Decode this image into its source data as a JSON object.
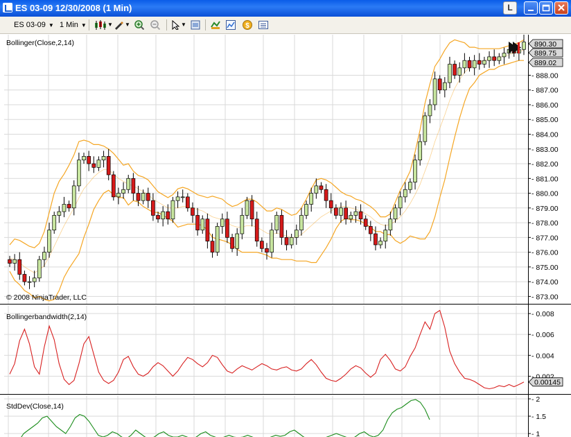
{
  "window": {
    "title": "ES 03-09  12/30/2008 (1 Min)",
    "link_button": "L"
  },
  "toolbar": {
    "instrument": "ES 03-09",
    "interval": "1 Min"
  },
  "colors": {
    "up_candle": "#c8e6a0",
    "down_candle": "#d51a1a",
    "band": "#f5a623",
    "bandwidth_line": "#d82020",
    "stddev_line": "#1a8c1a",
    "grid": "#d9d9d9",
    "price_marker": "#d9d9d9"
  },
  "icons": [
    "candlestick-icon",
    "pencil-icon",
    "zoom-in-icon",
    "zoom-out-icon",
    "cursor-icon",
    "properties-icon",
    "strategy-icon",
    "chart-trader-icon",
    "money-icon",
    "data-box-icon"
  ],
  "chart_data": [
    {
      "type": "candlestick",
      "title": "Bollinger(Close,2,14)",
      "copyright": "© 2008 NinjaTrader, LLC",
      "ylim": [
        872.5,
        890.75
      ],
      "yticks": [
        "873.00",
        "874.00",
        "875.00",
        "876.00",
        "877.00",
        "878.00",
        "879.00",
        "880.00",
        "881.00",
        "882.00",
        "883.00",
        "884.00",
        "885.00",
        "886.00",
        "887.00",
        "888.00"
      ],
      "price_markers": [
        "890.30",
        "889.75",
        "889.02"
      ],
      "series": [
        {
          "name": "Close",
          "values": [
            875.25,
            875.5,
            874.5,
            874.0,
            874.0,
            874.25,
            875.5,
            876.0,
            877.5,
            878.5,
            878.75,
            879.25,
            879.0,
            880.5,
            882.25,
            882.5,
            882.0,
            881.75,
            882.25,
            882.5,
            881.25,
            879.75,
            880.0,
            880.25,
            881.0,
            880.0,
            879.5,
            880.0,
            879.5,
            878.5,
            878.25,
            878.75,
            878.25,
            879.5,
            879.75,
            879.75,
            879.0,
            878.5,
            877.5,
            878.25,
            876.75,
            876.0,
            877.75,
            878.25,
            877.0,
            876.25,
            877.25,
            878.5,
            879.5,
            878.25,
            876.75,
            876.25,
            876.0,
            877.5,
            878.5,
            877.0,
            876.5,
            877.0,
            877.5,
            878.5,
            879.25,
            880.0,
            880.5,
            880.25,
            879.5,
            879.0,
            878.5,
            879.0,
            878.25,
            878.5,
            878.75,
            878.25,
            877.75,
            877.25,
            876.5,
            876.75,
            877.5,
            878.25,
            879.0,
            879.75,
            880.25,
            880.75,
            882.25,
            883.5,
            885.25,
            886.0,
            887.75,
            887.0,
            887.5,
            888.75,
            888.0,
            888.5,
            889.0,
            888.5,
            889.0,
            888.75,
            889.0,
            889.25,
            889.0,
            889.25,
            889.5,
            889.75,
            889.5,
            889.75,
            890.25
          ]
        },
        {
          "name": "Upper",
          "values": [
            876.5,
            876.9,
            876.8,
            876.6,
            876.4,
            876.3,
            876.6,
            877.4,
            878.7,
            880.0,
            880.8,
            881.3,
            881.9,
            882.6,
            883.5,
            883.6,
            883.5,
            883.3,
            883.3,
            883.2,
            883.0,
            882.7,
            882.3,
            881.9,
            882.0,
            881.5,
            881.2,
            881.1,
            880.9,
            880.5,
            880.1,
            879.9,
            879.7,
            879.9,
            880.3,
            880.4,
            880.3,
            880.1,
            879.9,
            879.8,
            879.7,
            879.8,
            879.7,
            879.6,
            879.3,
            879.1,
            879.2,
            879.4,
            879.6,
            879.6,
            879.4,
            879.1,
            878.8,
            878.8,
            879.0,
            878.9,
            878.7,
            878.5,
            878.6,
            879.0,
            879.6,
            880.3,
            880.9,
            881.0,
            880.9,
            880.7,
            880.4,
            880.1,
            879.9,
            879.8,
            879.6,
            879.5,
            879.3,
            879.1,
            878.8,
            878.4,
            878.4,
            878.6,
            879.4,
            880.2,
            880.8,
            881.5,
            882.8,
            884.3,
            886.1,
            887.4,
            888.6,
            889.1,
            889.7,
            890.2,
            890.4,
            890.3,
            890.2,
            889.9,
            889.9,
            889.8,
            889.8,
            889.8,
            889.8,
            889.8,
            889.9,
            890.0,
            890.1,
            890.2,
            890.4
          ]
        },
        {
          "name": "Middle",
          "values": [
            875.6,
            875.5,
            875.3,
            875.0,
            874.8,
            874.6,
            874.8,
            875.1,
            875.7,
            876.4,
            877.1,
            877.8,
            878.4,
            879.0,
            879.7,
            880.3,
            880.7,
            881.1,
            881.4,
            881.6,
            881.6,
            881.3,
            881.0,
            880.8,
            880.6,
            880.5,
            880.3,
            880.1,
            879.9,
            879.6,
            879.4,
            879.2,
            879.0,
            879.0,
            879.0,
            879.1,
            879.1,
            879.0,
            878.9,
            878.8,
            878.6,
            878.4,
            878.3,
            878.2,
            878.0,
            877.8,
            877.7,
            877.7,
            877.8,
            877.8,
            877.7,
            877.5,
            877.3,
            877.2,
            877.3,
            877.2,
            877.1,
            877.0,
            877.0,
            877.2,
            877.5,
            877.8,
            878.1,
            878.4,
            878.6,
            878.8,
            879.0,
            879.1,
            879.1,
            879.0,
            878.9,
            878.8,
            878.6,
            878.4,
            878.1,
            877.9,
            877.8,
            877.9,
            878.1,
            878.4,
            878.8,
            879.3,
            879.9,
            880.6,
            881.5,
            882.4,
            883.5,
            884.4,
            885.3,
            886.3,
            887.1,
            887.7,
            888.2,
            888.5,
            888.7,
            888.9,
            889.0,
            889.1,
            889.1,
            889.2,
            889.3,
            889.4,
            889.5,
            889.6,
            889.7
          ]
        },
        {
          "name": "Lower",
          "values": [
            874.7,
            874.1,
            873.8,
            873.4,
            873.2,
            872.9,
            873.0,
            872.8,
            872.7,
            872.8,
            873.4,
            874.3,
            874.9,
            875.4,
            875.9,
            877.0,
            877.9,
            878.9,
            879.5,
            880.0,
            880.2,
            879.9,
            879.7,
            879.7,
            879.2,
            879.5,
            879.4,
            879.1,
            878.9,
            878.7,
            878.7,
            878.5,
            878.3,
            878.1,
            877.7,
            877.8,
            877.9,
            877.9,
            877.9,
            877.8,
            877.5,
            877.0,
            876.9,
            876.8,
            876.7,
            876.5,
            876.2,
            876.0,
            876.0,
            876.0,
            876.0,
            875.9,
            875.8,
            875.6,
            875.6,
            875.5,
            875.5,
            875.5,
            875.4,
            875.4,
            875.4,
            875.3,
            875.3,
            875.8,
            876.3,
            876.9,
            877.6,
            878.1,
            878.3,
            878.2,
            878.2,
            878.1,
            877.9,
            877.7,
            877.4,
            877.4,
            877.2,
            877.2,
            876.8,
            876.6,
            876.8,
            877.1,
            877.0,
            876.9,
            876.9,
            877.4,
            878.4,
            879.7,
            880.9,
            882.4,
            883.8,
            885.1,
            886.2,
            887.1,
            887.5,
            888.0,
            888.2,
            888.4,
            888.4,
            888.6,
            888.7,
            888.8,
            888.9,
            889.0,
            889.0
          ]
        }
      ]
    },
    {
      "type": "line",
      "title": "Bollingerbandwidth(2,14)",
      "ylim": [
        0.0003,
        0.0088
      ],
      "yticks": [
        "0.002",
        "0.004",
        "0.006",
        "0.008"
      ],
      "last_value": "0.00145",
      "series": [
        {
          "name": "Bollingerbandwidth",
          "values": [
            0.0022,
            0.0032,
            0.0054,
            0.0065,
            0.0051,
            0.0029,
            0.0022,
            0.0048,
            0.0068,
            0.0055,
            0.0032,
            0.0017,
            0.0012,
            0.0016,
            0.0032,
            0.0051,
            0.0058,
            0.0041,
            0.0024,
            0.0016,
            0.0013,
            0.0016,
            0.0024,
            0.0036,
            0.0039,
            0.0029,
            0.0022,
            0.002,
            0.0023,
            0.0029,
            0.0033,
            0.003,
            0.0025,
            0.002,
            0.0025,
            0.0032,
            0.0038,
            0.0036,
            0.0032,
            0.0029,
            0.0033,
            0.004,
            0.0038,
            0.0031,
            0.0025,
            0.0023,
            0.0027,
            0.003,
            0.0028,
            0.0026,
            0.0029,
            0.0032,
            0.003,
            0.0027,
            0.0026,
            0.0028,
            0.0029,
            0.0026,
            0.0025,
            0.0027,
            0.0032,
            0.0036,
            0.0031,
            0.0024,
            0.0018,
            0.0016,
            0.0015,
            0.0018,
            0.0022,
            0.0027,
            0.003,
            0.0028,
            0.0023,
            0.0019,
            0.0023,
            0.0036,
            0.0041,
            0.0035,
            0.0027,
            0.0025,
            0.0029,
            0.0039,
            0.0047,
            0.006,
            0.0072,
            0.0065,
            0.008,
            0.0083,
            0.0067,
            0.0044,
            0.0032,
            0.0024,
            0.0018,
            0.0017,
            0.0015,
            0.0012,
            0.0009,
            0.0008,
            0.0009,
            0.0011,
            0.001,
            0.0012,
            0.001,
            0.0012,
            0.00145
          ]
        }
      ]
    },
    {
      "type": "line",
      "title": "StdDev(Close,14)",
      "ylim": [
        0.9,
        2.1
      ],
      "yticks": [
        "1",
        "1.5",
        "2"
      ],
      "series": [
        {
          "name": "StdDev",
          "values": [
            0.7,
            0.7,
            0.8,
            1.0,
            1.1,
            1.2,
            1.3,
            1.45,
            1.5,
            1.35,
            1.2,
            1.1,
            1.0,
            1.2,
            1.45,
            1.55,
            1.5,
            1.35,
            1.15,
            0.95,
            0.9,
            0.95,
            1.05,
            1.0,
            0.9,
            0.85,
            0.95,
            1.1,
            1.0,
            0.9,
            0.85,
            0.9,
            1.0,
            1.05,
            0.95,
            0.9,
            0.9,
            0.95,
            0.9,
            0.85,
            0.9,
            1.0,
            1.05,
            0.95,
            0.9,
            0.85,
            0.9,
            0.95,
            0.9,
            0.88,
            0.9,
            0.95,
            0.9,
            0.85,
            0.8,
            0.85,
            0.9,
            0.95,
            0.92,
            0.95,
            1.05,
            1.1,
            1.0,
            0.9,
            0.85,
            0.8,
            0.8,
            0.85,
            0.9,
            0.95,
            1.0,
            0.95,
            0.9,
            0.85,
            0.9,
            1.0,
            1.05,
            0.95,
            0.9,
            0.95,
            1.1,
            1.4,
            1.6,
            1.7,
            1.75,
            1.85,
            1.95,
            1.98,
            1.9,
            1.7,
            1.4
          ]
        }
      ]
    }
  ]
}
